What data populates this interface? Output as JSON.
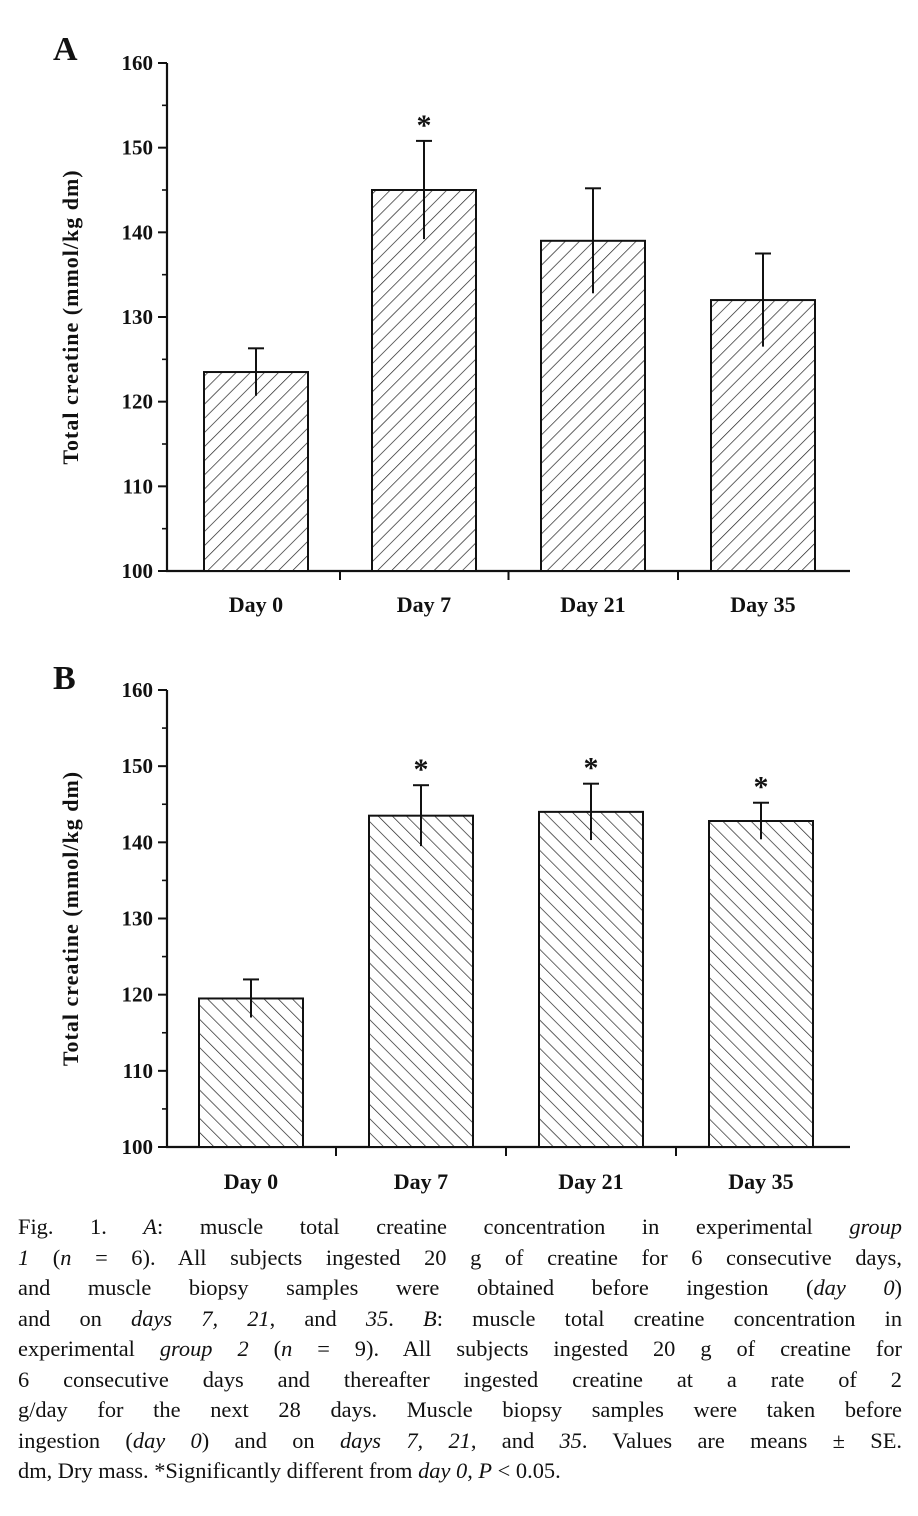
{
  "chart_data": [
    {
      "type": "bar",
      "panel": "A",
      "categories": [
        "Day 0",
        "Day 7",
        "Day 21",
        "Day 35"
      ],
      "values": [
        123.5,
        145,
        139,
        132
      ],
      "error_plus": [
        2.8,
        5.8,
        6.2,
        5.5
      ],
      "significant": [
        false,
        true,
        false,
        false
      ],
      "significance_marker": "*",
      "ylabel": "Total creatine (mmol/kg dm)",
      "xlabel": "",
      "ylim": [
        100,
        160
      ],
      "yticks": [
        100,
        110,
        120,
        130,
        140,
        150,
        160
      ],
      "hatch": "forward",
      "grid": false
    },
    {
      "type": "bar",
      "panel": "B",
      "categories": [
        "Day 0",
        "Day 7",
        "Day 21",
        "Day 35"
      ],
      "values": [
        119.5,
        143.5,
        144,
        142.8
      ],
      "error_plus": [
        2.5,
        4.0,
        3.7,
        2.4
      ],
      "significant": [
        false,
        true,
        true,
        true
      ],
      "significance_marker": "*",
      "ylabel": "Total creatine (mmol/kg dm)",
      "xlabel": "",
      "ylim": [
        100,
        160
      ],
      "yticks": [
        100,
        110,
        120,
        130,
        140,
        150,
        160
      ],
      "hatch": "backward",
      "grid": false
    }
  ],
  "caption": {
    "lines": [
      [
        {
          "t": "Fig. 1.  "
        },
        {
          "t": "A",
          "i": true
        },
        {
          "t": ": muscle total creatine concentration in experimental "
        },
        {
          "t": "group",
          "i": true
        }
      ],
      [
        {
          "t": "1",
          "i": true
        },
        {
          "t": " ("
        },
        {
          "t": "n",
          "i": true
        },
        {
          "t": " = 6). All subjects ingested 20 g of creatine for 6 consecutive days,"
        }
      ],
      [
        {
          "t": "and muscle biopsy samples were obtained before ingestion ("
        },
        {
          "t": "day 0",
          "i": true
        },
        {
          "t": ")"
        }
      ],
      [
        {
          "t": "and on "
        },
        {
          "t": "days 7, 21",
          "i": true
        },
        {
          "t": ", and "
        },
        {
          "t": "35",
          "i": true
        },
        {
          "t": ". "
        },
        {
          "t": "B",
          "i": true
        },
        {
          "t": ": muscle total creatine concentration in"
        }
      ],
      [
        {
          "t": "experimental "
        },
        {
          "t": "group 2",
          "i": true
        },
        {
          "t": " ("
        },
        {
          "t": "n",
          "i": true
        },
        {
          "t": " = 9). All subjects ingested 20 g of creatine for"
        }
      ],
      [
        {
          "t": "6 consecutive days and thereafter ingested creatine at a rate of 2"
        }
      ],
      [
        {
          "t": "g/day for the next 28 days. Muscle biopsy samples were taken before"
        }
      ],
      [
        {
          "t": "ingestion ("
        },
        {
          "t": "day 0",
          "i": true
        },
        {
          "t": ") and on "
        },
        {
          "t": "days 7, 21",
          "i": true
        },
        {
          "t": ", and "
        },
        {
          "t": "35",
          "i": true
        },
        {
          "t": ". Values are means ± SE."
        }
      ],
      [
        {
          "t": "dm, Dry mass. *Significantly different from "
        },
        {
          "t": "day 0",
          "i": true
        },
        {
          "t": ", "
        },
        {
          "t": "P",
          "i": true
        },
        {
          "t": " < 0.05."
        }
      ]
    ]
  }
}
